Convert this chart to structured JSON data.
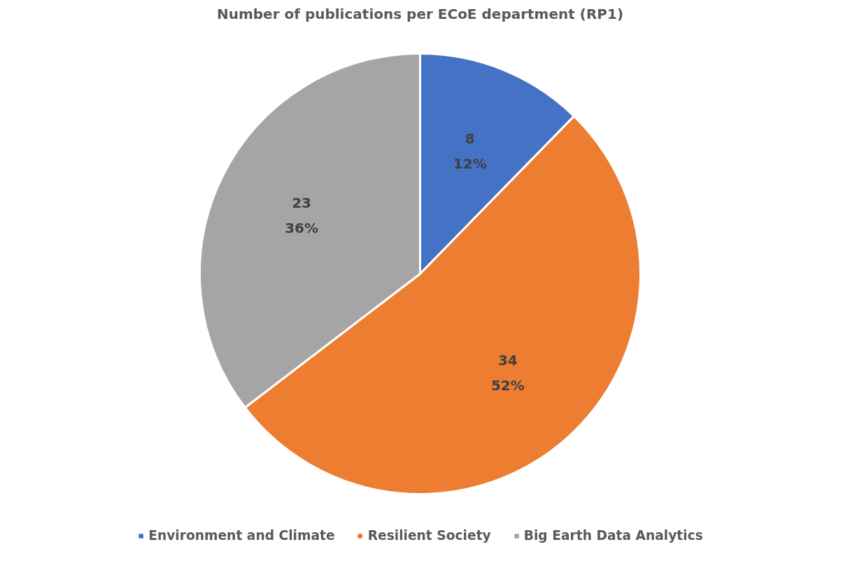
{
  "chart_data": {
    "type": "pie",
    "title": "Number of publications per ECoE department (RP1)",
    "categories": [
      "Environment and Climate",
      "Resilient Society",
      "Big Earth Data Analytics"
    ],
    "values": [
      8,
      34,
      23
    ],
    "colors": [
      "#4472c4",
      "#ed7d31",
      "#a5a5a5"
    ],
    "value_labels": [
      "8\n12%",
      "34\n52%",
      "23\n36%"
    ],
    "legend": "bottom"
  }
}
